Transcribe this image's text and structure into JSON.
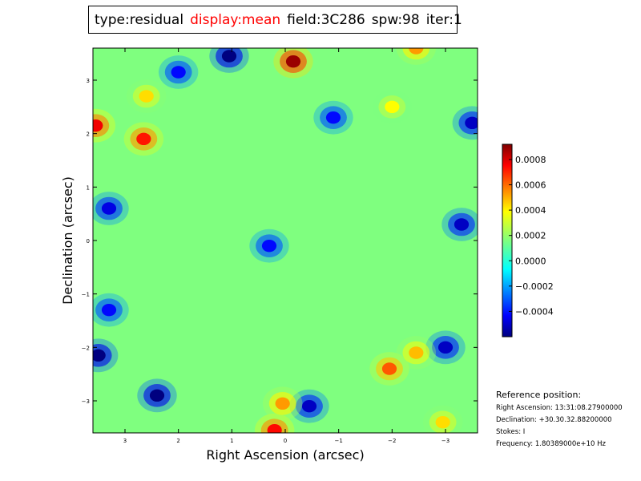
{
  "title_parts": [
    {
      "text": "type:residual",
      "color": "#000000"
    },
    {
      "text": "display:mean",
      "color": "#ff0000"
    },
    {
      "text": "field:3C286",
      "color": "#000000"
    },
    {
      "text": "spw:98",
      "color": "#000000"
    },
    {
      "text": "iter:1",
      "color": "#000000"
    }
  ],
  "reference": {
    "heading": "Reference position:",
    "lines": [
      "Right Ascension: 13:31:08.27900000",
      "Declination: +30.30.32.88200000",
      "Stokes: I",
      "Frequency: 1.80389000e+10 Hz"
    ]
  },
  "chart_data": {
    "type": "heatmap",
    "colormap": "jet",
    "xlabel": "Right Ascension (arcsec)",
    "ylabel": "Declination (arcsec)",
    "xlim": [
      3.6,
      -3.6
    ],
    "ylim": [
      -3.6,
      3.6
    ],
    "x_ticks": [
      3,
      2,
      1,
      0,
      -1,
      -2,
      -3
    ],
    "x_tick_labels": [
      "3",
      "2",
      "1",
      "0",
      "−1",
      "−2",
      "−3"
    ],
    "y_ticks": [
      3,
      2,
      1,
      0,
      -1,
      -2,
      -3
    ],
    "y_tick_labels": [
      "3",
      "2",
      "1",
      "0",
      "−1",
      "−2",
      "−3"
    ],
    "colorbar": {
      "min": -0.0006,
      "max": 0.00092,
      "ticks": [
        0.0008,
        0.0006,
        0.0004,
        0.0002,
        0.0,
        -0.0002,
        -0.0004
      ],
      "tick_labels": [
        "0.0008",
        "0.0006",
        "0.0004",
        "0.0002",
        "0.0000",
        "−0.0002",
        "−0.0004"
      ]
    },
    "peaks": [
      {
        "x": -0.15,
        "y": 3.35,
        "value": 0.00088
      },
      {
        "x": 3.55,
        "y": 2.15,
        "value": 0.00075
      },
      {
        "x": 2.65,
        "y": 1.9,
        "value": 0.0007
      },
      {
        "x": 0.2,
        "y": -3.55,
        "value": 0.00072
      },
      {
        "x": 0.05,
        "y": -3.05,
        "value": 0.0005
      },
      {
        "x": -1.95,
        "y": -2.4,
        "value": 0.0006
      },
      {
        "x": -2.45,
        "y": -2.1,
        "value": 0.00045
      },
      {
        "x": -2.0,
        "y": 2.5,
        "value": 0.00035
      },
      {
        "x": -2.45,
        "y": 3.6,
        "value": 0.0005
      },
      {
        "x": 2.6,
        "y": 2.7,
        "value": 0.0004
      },
      {
        "x": -2.95,
        "y": -3.4,
        "value": 0.0004
      }
    ],
    "troughs": [
      {
        "x": 1.05,
        "y": 3.45,
        "value": -0.0006
      },
      {
        "x": 3.5,
        "y": -2.15,
        "value": -0.0006
      },
      {
        "x": 2.4,
        "y": -2.9,
        "value": -0.0006
      },
      {
        "x": -0.45,
        "y": -3.1,
        "value": -0.0005
      },
      {
        "x": -3.0,
        "y": -2.0,
        "value": -0.0005
      },
      {
        "x": -3.3,
        "y": 0.3,
        "value": -0.0005
      },
      {
        "x": -3.5,
        "y": 2.2,
        "value": -0.0005
      },
      {
        "x": 3.3,
        "y": 0.6,
        "value": -0.00045
      },
      {
        "x": -0.9,
        "y": 2.3,
        "value": -0.0004
      },
      {
        "x": 2.0,
        "y": 3.15,
        "value": -0.0004
      },
      {
        "x": 3.3,
        "y": -1.3,
        "value": -0.0004
      },
      {
        "x": 0.3,
        "y": -0.1,
        "value": -0.0004
      }
    ]
  }
}
